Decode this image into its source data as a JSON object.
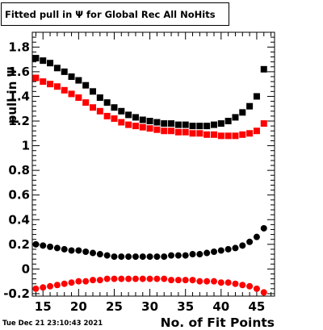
{
  "title": "Fitted pull in  Ψ  for Global Rec All NoHits",
  "timestamp": "Tue Dec 21 23:10:43 2021",
  "chart_data": {
    "type": "scatter",
    "title": "Fitted pull in  Ψ  for Global Rec All NoHits",
    "xlabel": "No. of Fit Points",
    "ylabel": "pull in  Ψ",
    "xlim": [
      13.5,
      47.5
    ],
    "ylim": [
      -0.22,
      1.92
    ],
    "xticks": [
      15,
      20,
      25,
      30,
      35,
      40,
      45
    ],
    "yticks": [
      -0.2,
      0,
      0.2,
      0.4,
      0.6,
      0.8,
      1,
      1.2,
      1.4,
      1.6,
      1.8
    ],
    "grid": false,
    "x": [
      14,
      15,
      16,
      17,
      18,
      19,
      20,
      21,
      22,
      23,
      24,
      25,
      26,
      27,
      28,
      29,
      30,
      31,
      32,
      33,
      34,
      35,
      36,
      37,
      38,
      39,
      40,
      41,
      42,
      43,
      44,
      45,
      46
    ],
    "series": [
      {
        "marker": "square",
        "color": "#000000",
        "values": [
          1.71,
          1.69,
          1.67,
          1.63,
          1.6,
          1.56,
          1.53,
          1.49,
          1.44,
          1.39,
          1.35,
          1.31,
          1.28,
          1.25,
          1.23,
          1.21,
          1.2,
          1.19,
          1.18,
          1.18,
          1.17,
          1.17,
          1.16,
          1.16,
          1.16,
          1.17,
          1.18,
          1.2,
          1.23,
          1.27,
          1.32,
          1.4,
          1.62
        ]
      },
      {
        "marker": "square",
        "color": "#ff0000",
        "values": [
          1.55,
          1.52,
          1.5,
          1.48,
          1.45,
          1.42,
          1.39,
          1.35,
          1.31,
          1.28,
          1.24,
          1.22,
          1.19,
          1.17,
          1.16,
          1.15,
          1.14,
          1.13,
          1.12,
          1.12,
          1.11,
          1.11,
          1.1,
          1.1,
          1.09,
          1.09,
          1.08,
          1.08,
          1.08,
          1.09,
          1.1,
          1.12,
          1.18
        ]
      },
      {
        "marker": "circle",
        "color": "#000000",
        "values": [
          0.2,
          0.19,
          0.18,
          0.17,
          0.16,
          0.15,
          0.15,
          0.14,
          0.13,
          0.12,
          0.11,
          0.1,
          0.1,
          0.1,
          0.1,
          0.1,
          0.1,
          0.1,
          0.1,
          0.11,
          0.11,
          0.11,
          0.12,
          0.12,
          0.13,
          0.14,
          0.15,
          0.16,
          0.17,
          0.19,
          0.22,
          0.26,
          0.33
        ]
      },
      {
        "marker": "circle",
        "color": "#ff0000",
        "values": [
          -0.16,
          -0.15,
          -0.14,
          -0.13,
          -0.12,
          -0.11,
          -0.1,
          -0.1,
          -0.09,
          -0.09,
          -0.08,
          -0.08,
          -0.08,
          -0.08,
          -0.08,
          -0.08,
          -0.08,
          -0.08,
          -0.08,
          -0.09,
          -0.09,
          -0.09,
          -0.09,
          -0.1,
          -0.1,
          -0.1,
          -0.11,
          -0.11,
          -0.12,
          -0.13,
          -0.14,
          -0.16,
          -0.19
        ]
      }
    ]
  }
}
